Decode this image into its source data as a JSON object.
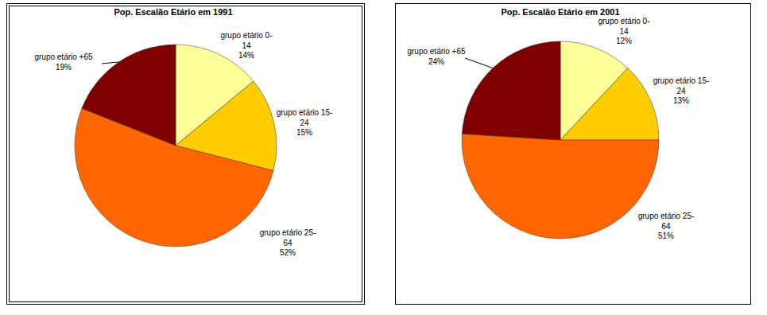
{
  "chart_data": [
    {
      "type": "pie",
      "title": "Pop. Escalão Etário em 1991",
      "categories": [
        "grupo etário 0-14",
        "grupo etário 15-24",
        "grupo etário 25-64",
        "grupo etário +65"
      ],
      "values": [
        14,
        15,
        52,
        19
      ],
      "value_labels": [
        "14%",
        "15%",
        "52%",
        "19%"
      ],
      "colors": [
        "#ffff99",
        "#ffcc00",
        "#ff6600",
        "#800000"
      ],
      "data_labels": true
    },
    {
      "type": "pie",
      "title": "Pop. Escalão Etário em 2001",
      "categories": [
        "grupo etário 0-14",
        "grupo etário 15-24",
        "grupo etário 25-64",
        "grupo etário +65"
      ],
      "values": [
        12,
        13,
        51,
        24
      ],
      "value_labels": [
        "12%",
        "13%",
        "51%",
        "24%"
      ],
      "colors": [
        "#ffff99",
        "#ffcc00",
        "#ff6600",
        "#800000"
      ],
      "data_labels": true
    }
  ]
}
